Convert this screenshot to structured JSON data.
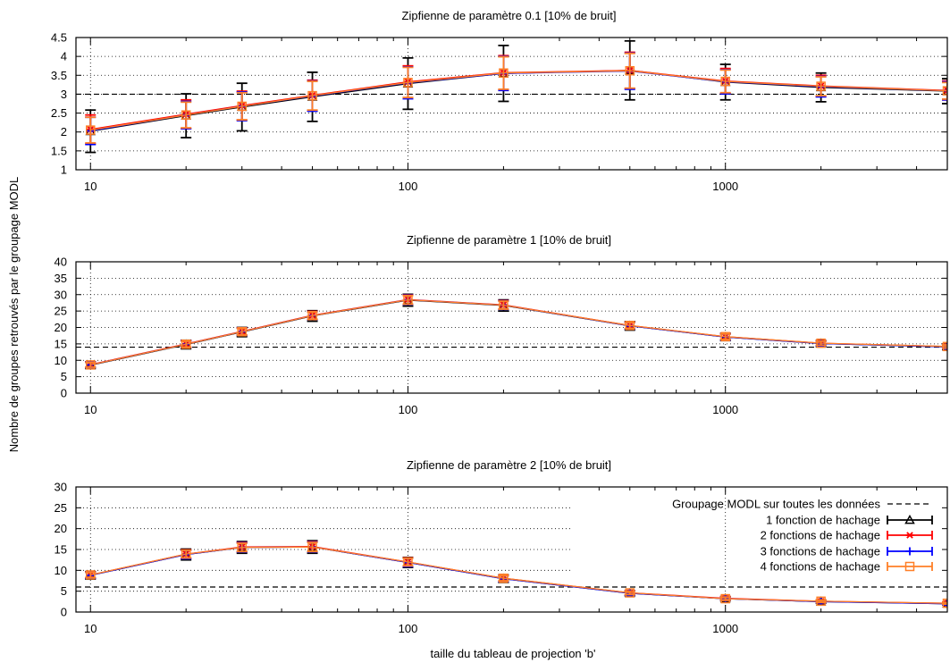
{
  "figure": {
    "ylabel": "Nombre de groupes retrouvés par le groupage MODL",
    "xlabel": "taille du tableau de projection 'b'"
  },
  "legend": {
    "entries": [
      {
        "label": "Groupage MODL sur toutes les données",
        "style": "dashed",
        "color": "#000000"
      },
      {
        "label": "1 fonction de hachage",
        "style": "triangle",
        "color": "#000000"
      },
      {
        "label": "2 fonctions de hachage",
        "style": "asterisk",
        "color": "#ff0000"
      },
      {
        "label": "3 fonctions de hachage",
        "style": "plus",
        "color": "#0000ff"
      },
      {
        "label": "4 fonctions de hachage",
        "style": "square",
        "color": "#ff7f27"
      }
    ]
  },
  "chart_data": [
    {
      "type": "line",
      "title": "Zipfienne de paramètre 0.1 [10% de bruit]",
      "x_scale": "log",
      "x": [
        10,
        20,
        30,
        50,
        100,
        200,
        500,
        1000,
        2000,
        5000
      ],
      "xlim": [
        9,
        5000
      ],
      "ylim": [
        1,
        4.5
      ],
      "yticks": [
        1,
        1.5,
        2,
        2.5,
        3,
        3.5,
        4,
        4.5
      ],
      "yticklabels": [
        "1",
        "1.5",
        "2",
        "2.5",
        "3",
        "3.5",
        "4",
        "4.5"
      ],
      "xticks": [
        10,
        100,
        1000
      ],
      "xticklabels": [
        "10",
        "100",
        "1000"
      ],
      "reference": 3,
      "series": [
        {
          "values": [
            2.02,
            2.43,
            2.66,
            2.93,
            3.28,
            3.55,
            3.63,
            3.32,
            3.18,
            3.08
          ],
          "err": [
            0.56,
            0.58,
            0.63,
            0.65,
            0.68,
            0.74,
            0.78,
            0.47,
            0.38,
            0.33
          ]
        },
        {
          "values": [
            2.07,
            2.47,
            2.7,
            2.97,
            3.33,
            3.57,
            3.63,
            3.35,
            3.22,
            3.1
          ],
          "err": [
            0.38,
            0.38,
            0.38,
            0.4,
            0.42,
            0.45,
            0.48,
            0.33,
            0.28,
            0.25
          ]
        },
        {
          "values": [
            2.03,
            2.45,
            2.68,
            2.95,
            3.3,
            3.55,
            3.61,
            3.33,
            3.2,
            3.09
          ],
          "err": [
            0.36,
            0.36,
            0.38,
            0.4,
            0.42,
            0.45,
            0.48,
            0.32,
            0.27,
            0.24
          ]
        },
        {
          "values": [
            2.05,
            2.45,
            2.68,
            2.96,
            3.31,
            3.56,
            3.62,
            3.34,
            3.21,
            3.09
          ],
          "err": [
            0.34,
            0.34,
            0.36,
            0.38,
            0.4,
            0.43,
            0.46,
            0.3,
            0.25,
            0.22
          ]
        }
      ]
    },
    {
      "type": "line",
      "title": "Zipfienne de paramètre 1 [10% de bruit]",
      "x_scale": "log",
      "x": [
        10,
        20,
        30,
        50,
        100,
        200,
        500,
        1000,
        2000,
        5000
      ],
      "xlim": [
        9,
        5000
      ],
      "ylim": [
        0,
        40
      ],
      "yticks": [
        0,
        5,
        10,
        15,
        20,
        25,
        30,
        35,
        40
      ],
      "yticklabels": [
        "0",
        "5",
        "10",
        "15",
        "20",
        "25",
        "30",
        "35",
        "40"
      ],
      "xticks": [
        10,
        100,
        1000
      ],
      "xticklabels": [
        "10",
        "100",
        "1000"
      ],
      "reference": 14,
      "series": [
        {
          "values": [
            8.5,
            14.8,
            18.6,
            23.5,
            28.3,
            26.7,
            20.5,
            17.1,
            15.1,
            14.1
          ],
          "err": [
            1.0,
            1.3,
            1.4,
            1.6,
            1.8,
            1.7,
            1.3,
            1.1,
            0.9,
            0.8
          ]
        },
        {
          "values": [
            8.7,
            15.0,
            18.8,
            23.7,
            28.5,
            26.9,
            20.6,
            17.2,
            15.2,
            14.2
          ],
          "err": [
            0.8,
            1.0,
            1.1,
            1.2,
            1.4,
            1.3,
            1.0,
            0.9,
            0.7,
            0.6
          ]
        },
        {
          "values": [
            8.6,
            14.9,
            18.7,
            23.6,
            28.4,
            26.8,
            20.5,
            17.1,
            15.1,
            14.1
          ],
          "err": [
            0.8,
            1.0,
            1.1,
            1.2,
            1.4,
            1.3,
            1.0,
            0.9,
            0.7,
            0.6
          ]
        },
        {
          "values": [
            8.6,
            14.9,
            18.7,
            23.6,
            28.4,
            26.8,
            20.6,
            17.2,
            15.2,
            14.2
          ],
          "err": [
            0.7,
            0.9,
            1.0,
            1.1,
            1.3,
            1.2,
            0.9,
            0.8,
            0.6,
            0.5
          ]
        }
      ]
    },
    {
      "type": "line",
      "title": "Zipfienne de paramètre 2 [10% de bruit]",
      "x_scale": "log",
      "x": [
        10,
        20,
        30,
        50,
        100,
        200,
        500,
        1000,
        2000,
        5000
      ],
      "xlim": [
        9,
        5000
      ],
      "ylim": [
        0,
        30
      ],
      "yticks": [
        0,
        5,
        10,
        15,
        20,
        25,
        30
      ],
      "yticklabels": [
        "0",
        "5",
        "10",
        "15",
        "20",
        "25",
        "30"
      ],
      "xticks": [
        10,
        100,
        1000
      ],
      "xticklabels": [
        "10",
        "100",
        "1000"
      ],
      "reference": 6,
      "series": [
        {
          "values": [
            8.8,
            13.8,
            15.5,
            15.6,
            11.9,
            8.0,
            4.5,
            3.2,
            2.5,
            2.0
          ],
          "err": [
            0.9,
            1.3,
            1.4,
            1.5,
            1.2,
            0.9,
            0.6,
            0.5,
            0.4,
            0.3
          ]
        },
        {
          "values": [
            8.9,
            13.9,
            15.6,
            15.7,
            12.0,
            8.1,
            4.6,
            3.3,
            2.6,
            2.1
          ],
          "err": [
            0.7,
            1.0,
            1.1,
            1.2,
            1.0,
            0.7,
            0.5,
            0.4,
            0.3,
            0.3
          ]
        },
        {
          "values": [
            8.8,
            13.8,
            15.5,
            15.6,
            11.9,
            8.0,
            4.5,
            3.2,
            2.5,
            2.0
          ],
          "err": [
            0.7,
            1.0,
            1.1,
            1.2,
            1.0,
            0.7,
            0.5,
            0.4,
            0.3,
            0.3
          ]
        },
        {
          "values": [
            8.9,
            13.9,
            15.5,
            15.6,
            12.0,
            8.1,
            4.6,
            3.2,
            2.6,
            2.1
          ],
          "err": [
            0.6,
            0.9,
            1.0,
            1.1,
            0.9,
            0.6,
            0.4,
            0.4,
            0.3,
            0.2
          ]
        }
      ]
    }
  ]
}
